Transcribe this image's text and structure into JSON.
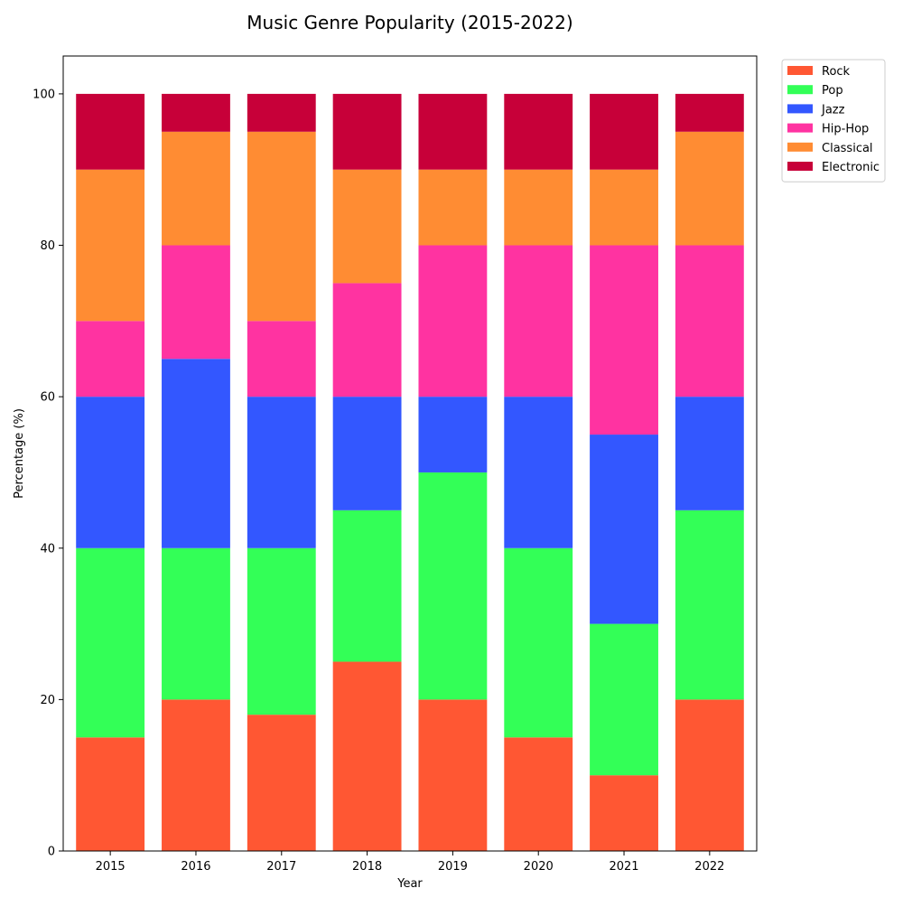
{
  "chart_data": {
    "type": "bar",
    "stacked": true,
    "title": "Music Genre Popularity (2015-2022)",
    "xlabel": "Year",
    "ylabel": "Percentage (%)",
    "categories": [
      "2015",
      "2016",
      "2017",
      "2018",
      "2019",
      "2020",
      "2021",
      "2022"
    ],
    "ylim": [
      0,
      105
    ],
    "yticks": [
      0,
      20,
      40,
      60,
      80,
      100
    ],
    "grid": false,
    "legend_position": "outside top-right",
    "series": [
      {
        "name": "Rock",
        "color": "#ff5733",
        "values": [
          15,
          20,
          18,
          25,
          20,
          15,
          10,
          20
        ]
      },
      {
        "name": "Pop",
        "color": "#33ff57",
        "values": [
          25,
          20,
          22,
          20,
          30,
          25,
          20,
          25
        ]
      },
      {
        "name": "Jazz",
        "color": "#3357ff",
        "values": [
          20,
          25,
          20,
          15,
          10,
          20,
          25,
          15
        ]
      },
      {
        "name": "Hip-Hop",
        "color": "#ff33a1",
        "values": [
          10,
          15,
          10,
          15,
          20,
          20,
          25,
          20
        ]
      },
      {
        "name": "Classical",
        "color": "#ff8c33",
        "values": [
          20,
          15,
          25,
          15,
          10,
          10,
          10,
          15
        ]
      },
      {
        "name": "Electronic",
        "color": "#c70039",
        "values": [
          10,
          5,
          5,
          10,
          10,
          10,
          10,
          5
        ]
      }
    ]
  }
}
